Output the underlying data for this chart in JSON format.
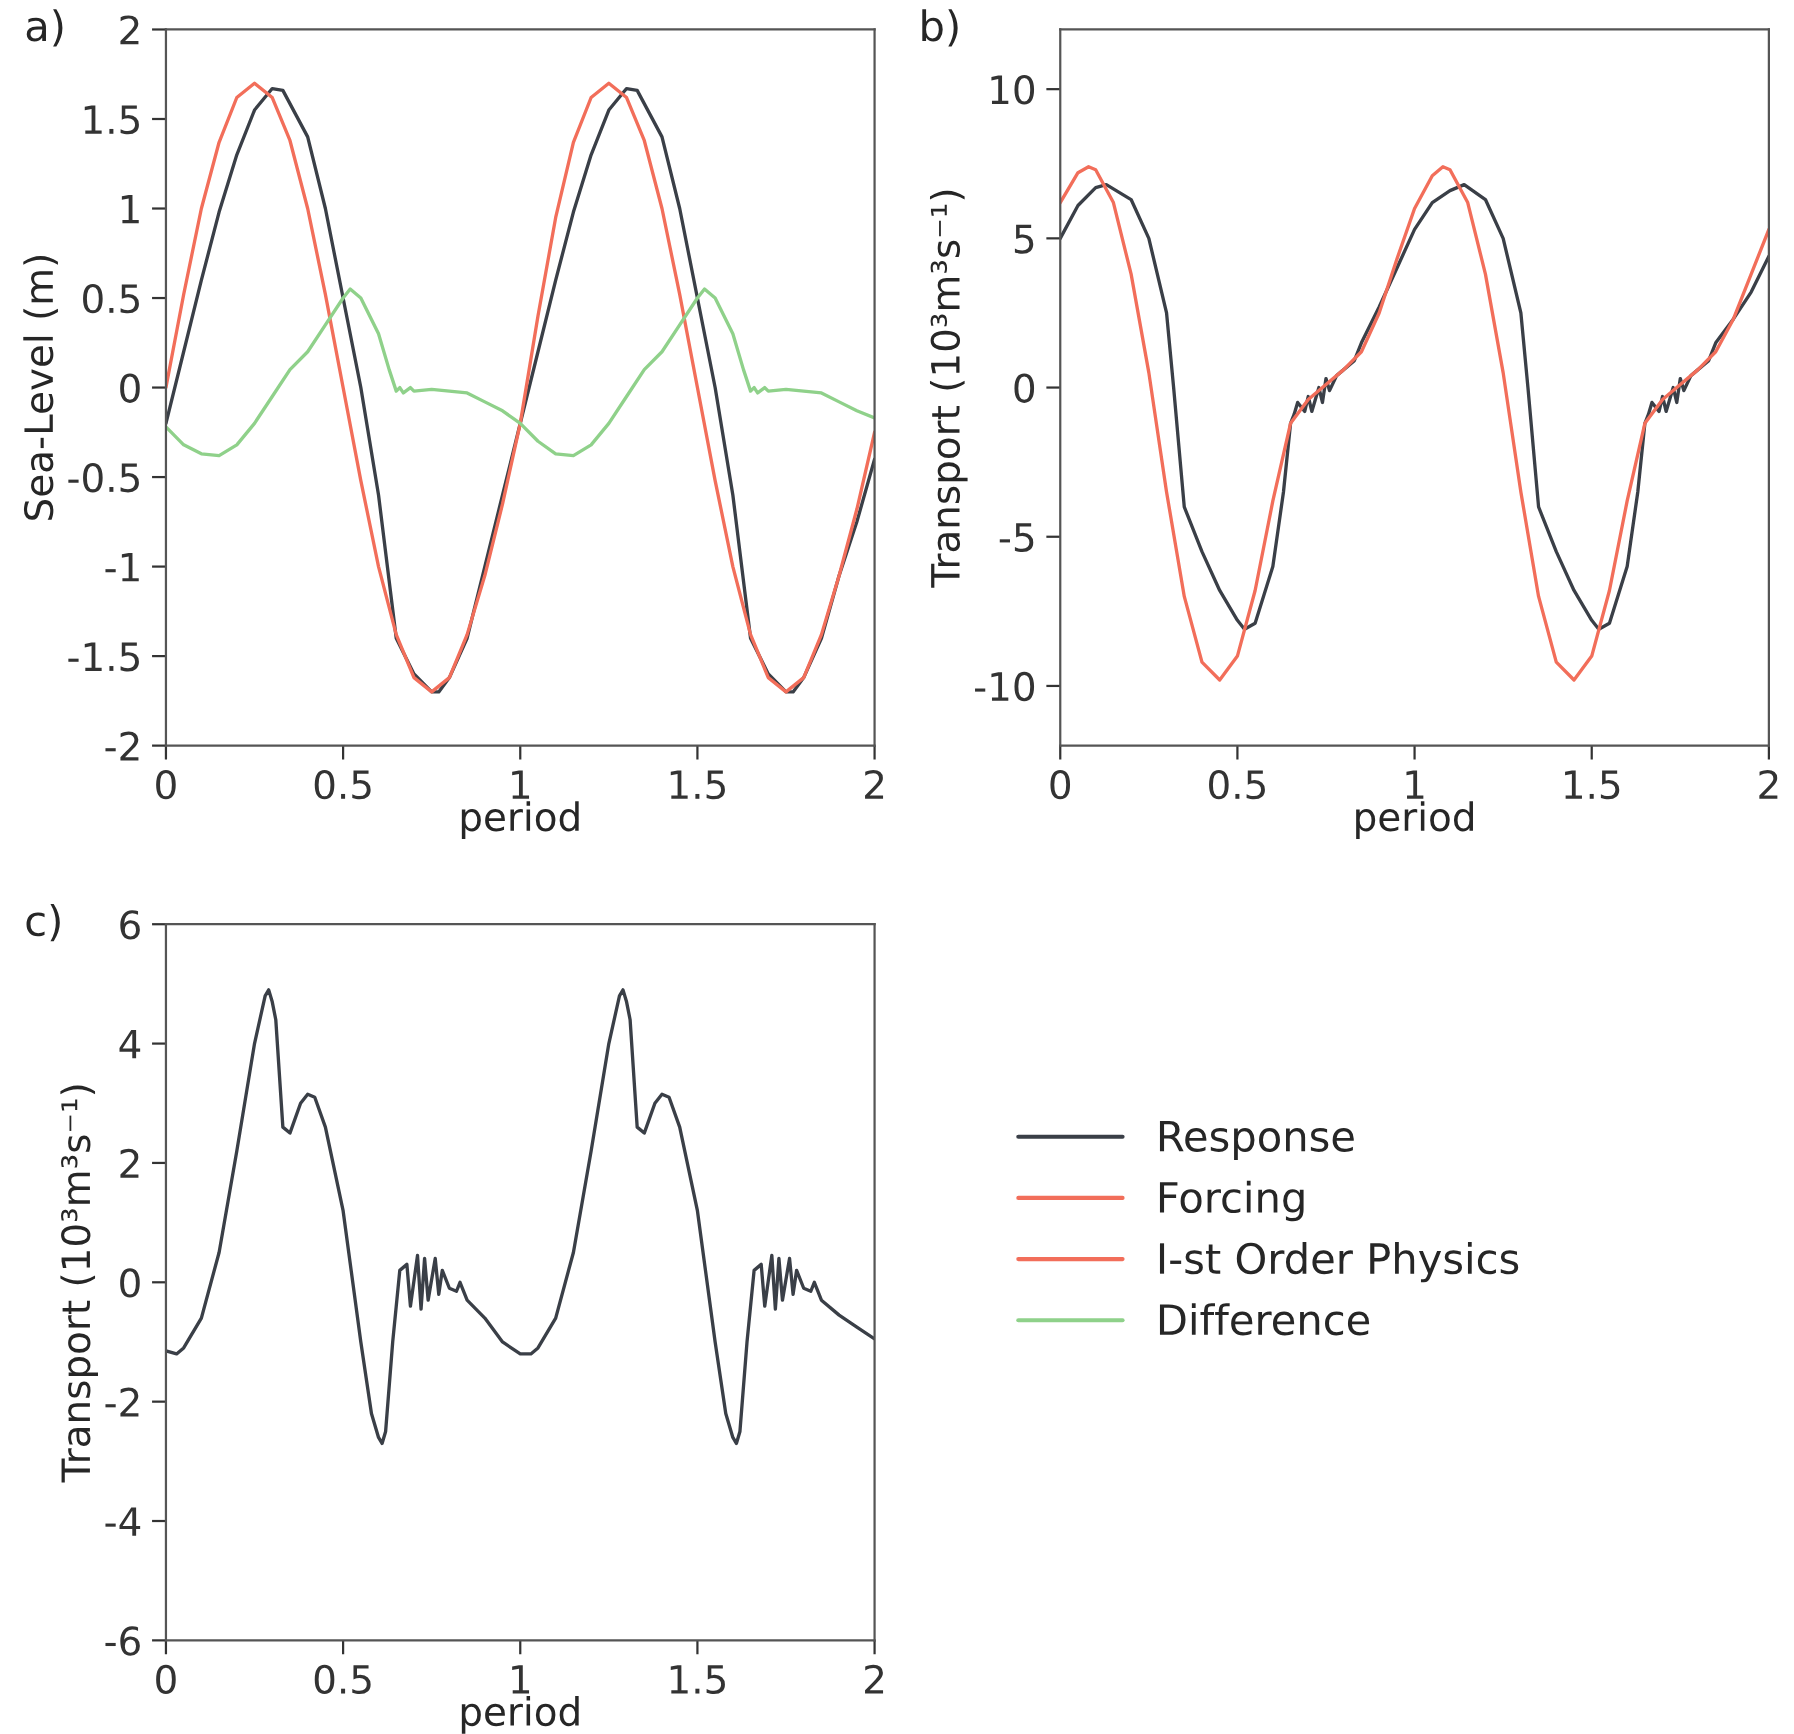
{
  "chart_data": [
    {
      "type": "line",
      "title": "a)",
      "xlabel": "period",
      "ylabel": "Sea-Level (m)",
      "xlim": [
        0,
        2
      ],
      "ylim": [
        -2,
        2
      ],
      "xticks": [
        0,
        0.5,
        1,
        1.5,
        2
      ],
      "yticks": [
        -2,
        -1.5,
        -1,
        -0.5,
        0,
        0.5,
        1,
        1.5,
        2
      ],
      "grid": false,
      "line_style": "solid",
      "marker": "none",
      "legend": "bottom right",
      "series": [
        {
          "name": "Response",
          "color": "#3a3f47",
          "x": [
            0,
            0.05,
            0.1,
            0.15,
            0.2,
            0.25,
            0.3,
            0.33,
            0.4,
            0.45,
            0.5,
            0.55,
            0.6,
            0.65,
            0.7,
            0.75,
            0.77,
            0.8,
            0.85,
            0.9,
            0.95,
            1.0,
            1.05,
            1.1,
            1.15,
            1.2,
            1.25,
            1.3,
            1.33,
            1.4,
            1.45,
            1.5,
            1.55,
            1.6,
            1.65,
            1.7,
            1.75,
            1.77,
            1.8,
            1.85,
            1.9,
            1.95,
            2.0
          ],
          "values": [
            -0.2,
            0.2,
            0.6,
            0.98,
            1.3,
            1.55,
            1.67,
            1.66,
            1.4,
            1.0,
            0.5,
            0.0,
            -0.6,
            -1.4,
            -1.6,
            -1.7,
            -1.7,
            -1.62,
            -1.4,
            -1.0,
            -0.6,
            -0.2,
            0.2,
            0.6,
            0.98,
            1.3,
            1.55,
            1.67,
            1.66,
            1.4,
            1.0,
            0.5,
            0.0,
            -0.6,
            -1.4,
            -1.6,
            -1.7,
            -1.7,
            -1.62,
            -1.4,
            -1.05,
            -0.75,
            -0.4
          ]
        },
        {
          "name": "Forcing",
          "color": "#f26e5a",
          "x": [
            0,
            0.05,
            0.1,
            0.15,
            0.2,
            0.25,
            0.3,
            0.35,
            0.4,
            0.45,
            0.5,
            0.55,
            0.6,
            0.65,
            0.7,
            0.75,
            0.8,
            0.85,
            0.9,
            0.95,
            1.0,
            1.05,
            1.1,
            1.15,
            1.2,
            1.25,
            1.3,
            1.35,
            1.4,
            1.45,
            1.5,
            1.55,
            1.6,
            1.65,
            1.7,
            1.75,
            1.8,
            1.85,
            1.9,
            1.95,
            2.0
          ],
          "values": [
            0.0,
            0.52,
            1.0,
            1.37,
            1.62,
            1.7,
            1.62,
            1.38,
            1.0,
            0.52,
            0.0,
            -0.52,
            -1.0,
            -1.38,
            -1.62,
            -1.7,
            -1.62,
            -1.38,
            -1.05,
            -0.65,
            -0.2,
            0.4,
            0.95,
            1.37,
            1.62,
            1.7,
            1.62,
            1.38,
            1.0,
            0.52,
            0.0,
            -0.52,
            -1.0,
            -1.38,
            -1.62,
            -1.7,
            -1.62,
            -1.38,
            -1.05,
            -0.68,
            -0.25
          ]
        },
        {
          "name": "Difference",
          "color": "#8fd18a",
          "x": [
            0,
            0.05,
            0.1,
            0.15,
            0.2,
            0.25,
            0.3,
            0.35,
            0.4,
            0.45,
            0.5,
            0.52,
            0.55,
            0.6,
            0.63,
            0.65,
            0.66,
            0.67,
            0.69,
            0.7,
            0.75,
            0.8,
            0.85,
            0.9,
            0.95,
            1.0,
            1.05,
            1.1,
            1.15,
            1.2,
            1.25,
            1.3,
            1.35,
            1.4,
            1.45,
            1.5,
            1.52,
            1.55,
            1.6,
            1.63,
            1.65,
            1.66,
            1.67,
            1.69,
            1.7,
            1.75,
            1.8,
            1.85,
            1.9,
            1.95,
            2.0
          ],
          "values": [
            -0.22,
            -0.32,
            -0.37,
            -0.38,
            -0.32,
            -0.2,
            -0.05,
            0.1,
            0.2,
            0.35,
            0.5,
            0.55,
            0.5,
            0.3,
            0.1,
            -0.02,
            0.0,
            -0.03,
            0.0,
            -0.02,
            -0.01,
            -0.02,
            -0.03,
            -0.08,
            -0.13,
            -0.2,
            -0.3,
            -0.37,
            -0.38,
            -0.32,
            -0.2,
            -0.05,
            0.1,
            0.2,
            0.35,
            0.5,
            0.55,
            0.5,
            0.3,
            0.1,
            -0.02,
            0.0,
            -0.03,
            0.0,
            -0.02,
            -0.01,
            -0.02,
            -0.03,
            -0.08,
            -0.13,
            -0.17
          ]
        }
      ]
    },
    {
      "type": "line",
      "title": "b)",
      "xlabel": "period",
      "ylabel": "Transport (10³m³s⁻¹)",
      "xlim": [
        0,
        2
      ],
      "ylim": [
        -12,
        12
      ],
      "xticks": [
        0,
        0.5,
        1,
        1.5,
        2
      ],
      "yticks": [
        -10,
        -5,
        0,
        5,
        10
      ],
      "grid": false,
      "line_style": "solid",
      "marker": "none",
      "series": [
        {
          "color": "#3a3f47",
          "x": [
            0,
            0.05,
            0.1,
            0.13,
            0.2,
            0.25,
            0.3,
            0.32,
            0.35,
            0.4,
            0.45,
            0.5,
            0.52,
            0.55,
            0.6,
            0.63,
            0.65,
            0.66,
            0.67,
            0.69,
            0.7,
            0.71,
            0.73,
            0.74,
            0.75,
            0.76,
            0.78,
            0.8,
            0.83,
            0.85,
            0.9,
            0.95,
            1.0,
            1.05,
            1.1,
            1.14,
            1.2,
            1.25,
            1.3,
            1.32,
            1.35,
            1.4,
            1.45,
            1.5,
            1.52,
            1.55,
            1.6,
            1.63,
            1.65,
            1.66,
            1.67,
            1.69,
            1.7,
            1.71,
            1.73,
            1.74,
            1.75,
            1.76,
            1.78,
            1.8,
            1.83,
            1.85,
            1.9,
            1.95,
            2.0
          ],
          "values": [
            5.0,
            6.1,
            6.7,
            6.8,
            6.3,
            5.0,
            2.5,
            0.0,
            -4.0,
            -5.5,
            -6.8,
            -7.8,
            -8.1,
            -7.9,
            -6.0,
            -3.5,
            -1.2,
            -0.9,
            -0.5,
            -0.8,
            -0.3,
            -0.8,
            0.0,
            -0.5,
            0.3,
            -0.1,
            0.4,
            0.6,
            0.9,
            1.5,
            2.7,
            4.0,
            5.3,
            6.2,
            6.6,
            6.8,
            6.3,
            5.0,
            2.5,
            0.0,
            -4.0,
            -5.5,
            -6.8,
            -7.8,
            -8.1,
            -7.9,
            -6.0,
            -3.5,
            -1.2,
            -0.9,
            -0.5,
            -0.8,
            -0.3,
            -0.8,
            0.0,
            -0.5,
            0.3,
            -0.1,
            0.4,
            0.6,
            0.9,
            1.5,
            2.3,
            3.2,
            4.4
          ]
        },
        {
          "name": "I-st Order Physics",
          "color": "#f26e5a",
          "x": [
            0,
            0.05,
            0.08,
            0.1,
            0.15,
            0.2,
            0.25,
            0.3,
            0.35,
            0.4,
            0.45,
            0.5,
            0.55,
            0.6,
            0.65,
            0.7,
            0.75,
            0.8,
            0.85,
            0.9,
            0.95,
            1.0,
            1.05,
            1.08,
            1.1,
            1.15,
            1.2,
            1.25,
            1.3,
            1.35,
            1.4,
            1.45,
            1.5,
            1.55,
            1.6,
            1.65,
            1.7,
            1.75,
            1.8,
            1.85,
            1.9,
            1.95,
            2.0
          ],
          "values": [
            6.2,
            7.2,
            7.4,
            7.3,
            6.2,
            3.8,
            0.5,
            -3.5,
            -7.0,
            -9.2,
            -9.8,
            -9.0,
            -6.8,
            -3.8,
            -1.2,
            -0.4,
            0.1,
            0.6,
            1.2,
            2.5,
            4.3,
            6.0,
            7.1,
            7.4,
            7.3,
            6.2,
            3.8,
            0.5,
            -3.5,
            -7.0,
            -9.2,
            -9.8,
            -9.0,
            -6.8,
            -3.8,
            -1.2,
            -0.4,
            0.1,
            0.6,
            1.2,
            2.3,
            3.8,
            5.3
          ]
        }
      ]
    },
    {
      "type": "line",
      "title": "c)",
      "xlabel": "period",
      "ylabel": "Transport (10³m³s⁻¹)",
      "xlim": [
        0,
        2
      ],
      "ylim": [
        -6,
        6
      ],
      "xticks": [
        0,
        0.5,
        1,
        1.5,
        2
      ],
      "yticks": [
        -6,
        -4,
        -2,
        0,
        2,
        4,
        6
      ],
      "grid": false,
      "line_style": "solid",
      "marker": "none",
      "series": [
        {
          "color": "#3a3f47",
          "x": [
            0,
            0.03,
            0.05,
            0.1,
            0.15,
            0.2,
            0.25,
            0.28,
            0.29,
            0.3,
            0.31,
            0.33,
            0.35,
            0.38,
            0.4,
            0.42,
            0.45,
            0.5,
            0.55,
            0.58,
            0.6,
            0.61,
            0.62,
            0.64,
            0.66,
            0.68,
            0.69,
            0.71,
            0.72,
            0.73,
            0.74,
            0.76,
            0.77,
            0.78,
            0.8,
            0.82,
            0.83,
            0.85,
            0.9,
            0.95,
            1.0,
            1.03,
            1.05,
            1.1,
            1.15,
            1.2,
            1.25,
            1.28,
            1.29,
            1.3,
            1.31,
            1.33,
            1.35,
            1.38,
            1.4,
            1.42,
            1.45,
            1.5,
            1.55,
            1.58,
            1.6,
            1.61,
            1.62,
            1.64,
            1.66,
            1.68,
            1.69,
            1.71,
            1.72,
            1.73,
            1.74,
            1.76,
            1.77,
            1.78,
            1.8,
            1.82,
            1.83,
            1.85,
            1.9,
            1.95,
            2.0
          ],
          "values": [
            -1.15,
            -1.2,
            -1.1,
            -0.6,
            0.5,
            2.2,
            4.0,
            4.8,
            4.9,
            4.7,
            4.4,
            2.6,
            2.5,
            3.0,
            3.15,
            3.1,
            2.6,
            1.2,
            -1.0,
            -2.2,
            -2.6,
            -2.7,
            -2.5,
            -1.0,
            0.2,
            0.3,
            -0.4,
            0.45,
            -0.45,
            0.4,
            -0.3,
            0.4,
            -0.2,
            0.2,
            -0.1,
            -0.15,
            0.0,
            -0.3,
            -0.6,
            -1.0,
            -1.2,
            -1.2,
            -1.1,
            -0.6,
            0.5,
            2.2,
            4.0,
            4.8,
            4.9,
            4.7,
            4.4,
            2.6,
            2.5,
            3.0,
            3.15,
            3.1,
            2.6,
            1.2,
            -1.0,
            -2.2,
            -2.6,
            -2.7,
            -2.5,
            -1.0,
            0.2,
            0.3,
            -0.4,
            0.45,
            -0.45,
            0.4,
            -0.3,
            0.4,
            -0.2,
            0.2,
            -0.1,
            -0.15,
            0.0,
            -0.3,
            -0.55,
            -0.75,
            -0.95
          ]
        }
      ]
    }
  ]
}
